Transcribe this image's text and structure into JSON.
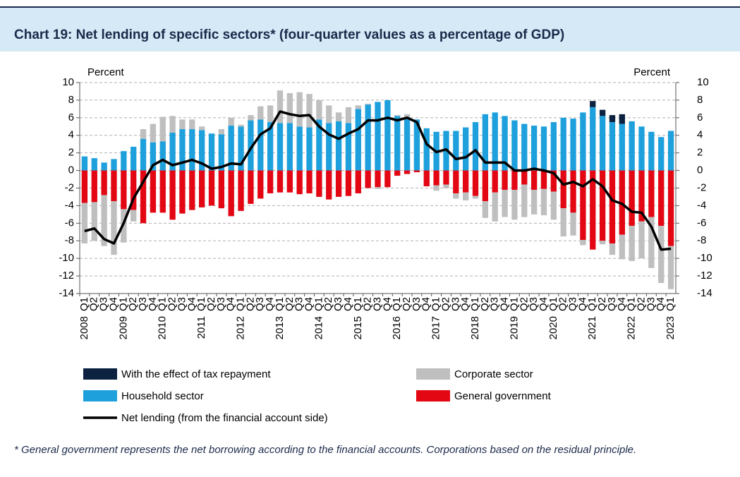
{
  "chart_data": {
    "type": "bar",
    "title": "Chart 19: Net lending of specific sectors* (four-quarter values as a percentage of GDP)",
    "y_axis_label": "Percent",
    "y2_axis_label": "Percent",
    "note": "* General government represents the net borrowing according to the financial accounts. Corporations based on the residual principle.",
    "categories": [
      "Q1",
      "Q2",
      "Q3",
      "Q4",
      "Q1",
      "Q2",
      "Q3",
      "Q4",
      "Q1",
      "Q2",
      "Q3",
      "Q4",
      "Q1",
      "Q2",
      "Q3",
      "Q4",
      "Q1",
      "Q2",
      "Q3",
      "Q4",
      "Q1",
      "Q2",
      "Q3",
      "Q4",
      "Q1",
      "Q2",
      "Q3",
      "Q4",
      "Q1",
      "Q2",
      "Q3",
      "Q4",
      "Q1",
      "Q2",
      "Q3",
      "Q4",
      "Q1",
      "Q2",
      "Q3",
      "Q4",
      "Q1",
      "Q2",
      "Q3",
      "Q4",
      "Q1",
      "Q2",
      "Q3",
      "Q4",
      "Q1",
      "Q2",
      "Q3",
      "Q4",
      "Q1",
      "Q2",
      "Q3",
      "Q4",
      "Q1",
      "Q2",
      "Q3",
      "Q4",
      "Q1"
    ],
    "years": [
      "2008",
      "2009",
      "2010",
      "2011",
      "2012",
      "2013",
      "2014",
      "2015",
      "2016",
      "2017",
      "2018",
      "2019",
      "2020",
      "2021",
      "2022",
      "2023"
    ],
    "ylim": [
      -14,
      10
    ],
    "yticks": [
      -14,
      -12,
      -10,
      -8,
      -6,
      -4,
      -2,
      0,
      2,
      4,
      6,
      8,
      10
    ],
    "y2lim": [
      -14,
      10
    ],
    "y2ticks": [
      -14,
      -12,
      -10,
      -8,
      -6,
      -4,
      -2,
      0,
      2,
      4,
      6,
      8,
      10
    ],
    "grid": true,
    "stacked": true,
    "series": [
      {
        "name": "Household sector",
        "color": "#1ea0dc",
        "values": [
          1.6,
          1.4,
          0.9,
          1.3,
          2.2,
          2.7,
          3.6,
          3.2,
          3.3,
          4.3,
          4.7,
          4.7,
          4.6,
          4.2,
          4.1,
          5.1,
          5.0,
          5.7,
          5.8,
          5.5,
          5.4,
          5.4,
          5.0,
          4.9,
          5.8,
          5.4,
          5.6,
          5.4,
          7.0,
          7.5,
          7.8,
          8.0,
          6.2,
          6.1,
          5.8,
          4.8,
          4.4,
          4.5,
          4.5,
          4.9,
          5.5,
          6.4,
          6.6,
          6.2,
          5.7,
          5.3,
          5.1,
          5.0,
          5.5,
          6.0,
          5.9,
          6.6,
          7.2,
          6.2,
          5.5,
          5.3,
          5.6,
          5.0,
          4.4,
          3.8,
          4.5
        ]
      },
      {
        "name": "General government",
        "color": "#e30613",
        "values": [
          -3.7,
          -3.6,
          -2.8,
          -3.5,
          -4.4,
          -4.5,
          -6.0,
          -4.8,
          -4.8,
          -5.6,
          -4.9,
          -4.5,
          -4.2,
          -4.0,
          -4.3,
          -5.2,
          -4.6,
          -3.8,
          -3.2,
          -2.6,
          -2.5,
          -2.5,
          -2.7,
          -2.6,
          -3.0,
          -3.3,
          -3.0,
          -2.9,
          -2.6,
          -2.0,
          -1.9,
          -1.9,
          -0.6,
          -0.4,
          -0.2,
          -1.8,
          -1.7,
          -1.6,
          -2.6,
          -2.5,
          -2.9,
          -3.5,
          -2.5,
          -2.2,
          -2.2,
          -1.6,
          -2.2,
          -2.1,
          -2.4,
          -4.3,
          -4.8,
          -7.9,
          -9.0,
          -8.0,
          -8.3,
          -7.3,
          -6.3,
          -5.8,
          -5.3,
          -6.3,
          -8.6
        ]
      },
      {
        "name": "Corporate sector",
        "color": "#bfbfbf",
        "values": [
          -4.6,
          -4.4,
          -5.8,
          -6.1,
          -3.8,
          -1.3,
          1.1,
          2.1,
          2.8,
          1.9,
          1.1,
          1.1,
          0.4,
          0,
          0.6,
          0.9,
          0.2,
          0.6,
          1.5,
          1.9,
          3.7,
          3.4,
          3.9,
          3.8,
          2.2,
          2.0,
          1.0,
          1.8,
          0.4,
          0.1,
          -0.2,
          0,
          0.1,
          0.3,
          0,
          0,
          -0.6,
          -0.4,
          -0.6,
          -0.9,
          -0.3,
          -1.9,
          -3.3,
          -3.1,
          -3.4,
          -3.7,
          -2.8,
          -3.0,
          -3.2,
          -3.2,
          -2.6,
          -0.6,
          0,
          -0.4,
          -1.3,
          -2.8,
          -4.0,
          -4.2,
          -5.8,
          -6.5,
          -4.9
        ]
      },
      {
        "name": "With the effect of tax repayment",
        "color": "#0d2240",
        "values": [
          0,
          0,
          0,
          0,
          0,
          0,
          0,
          0,
          0,
          0,
          0,
          0,
          0,
          0,
          0,
          0,
          0,
          0,
          0,
          0,
          0,
          0,
          0,
          0,
          0,
          0,
          0,
          0,
          0,
          0,
          0,
          0,
          0,
          0,
          0,
          0,
          0,
          0,
          0,
          0,
          0,
          0,
          0,
          0,
          0,
          0,
          0,
          0,
          0,
          0,
          0,
          0,
          0.7,
          0.7,
          0.8,
          1.1,
          0,
          0,
          0,
          0,
          0
        ]
      },
      {
        "name": "Net lending (from the financial account side)",
        "type": "line",
        "color": "#000000",
        "values": [
          -6.9,
          -6.6,
          -7.8,
          -8.3,
          -6.0,
          -3.2,
          -1.3,
          0.6,
          1.2,
          0.6,
          0.9,
          1.2,
          0.8,
          0.2,
          0.4,
          0.8,
          0.7,
          2.5,
          4.1,
          4.8,
          6.7,
          6.4,
          6.2,
          6.3,
          5.0,
          4.1,
          3.6,
          4.2,
          4.7,
          5.7,
          5.7,
          6.0,
          5.7,
          6.0,
          5.5,
          3.0,
          2.1,
          2.4,
          1.3,
          1.5,
          2.3,
          0.9,
          0.9,
          0.9,
          0.0,
          0.0,
          0.2,
          0.0,
          -0.3,
          -1.6,
          -1.3,
          -1.8,
          -1.0,
          -1.8,
          -3.4,
          -3.8,
          -4.7,
          -4.8,
          -6.4,
          -9.0,
          -8.9
        ]
      }
    ]
  }
}
